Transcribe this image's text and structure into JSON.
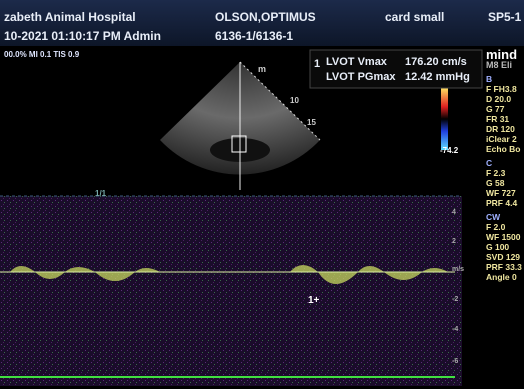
{
  "header": {
    "hospital": "zabeth Animal Hospital",
    "patient": "OLSON,OPTIMUS",
    "preset": "card small",
    "probe": "SP5-1",
    "datetime": "10-2021 01:10:17 PM Admin",
    "study_id": "6136-1/6136-1",
    "power": "00.0% MI 0.1 TIS 0.9"
  },
  "measurement": {
    "index": "1",
    "rows": [
      {
        "label": "LVOT Vmax",
        "value": "176.20 cm/s"
      },
      {
        "label": "LVOT PGmax",
        "value": "12.42 mmHg"
      }
    ]
  },
  "image": {
    "orientation_mark": "m",
    "depth_ticks": [
      "10",
      "15"
    ],
    "color_scale_min": "-74.2",
    "sweep_label": "1/1",
    "cursor_label": "1+"
  },
  "doppler_scale": [
    "4",
    "2",
    "m/s",
    "-2",
    "-4",
    "-6"
  ],
  "side_panel": {
    "brand": "mind",
    "model": "M8 Eli",
    "b_mode": {
      "title": "B",
      "params": [
        "F FH3.8",
        "D 20.0",
        "G 77",
        "FR 31",
        "DR 120",
        "iClear 2",
        "Echo Bo"
      ]
    },
    "color": {
      "title": "C",
      "params": [
        "F 2.3",
        "G 58",
        "WF 727",
        "PRF 4.4"
      ]
    },
    "cw": {
      "title": "CW",
      "params": [
        "F 2.0",
        "WF 1500",
        "G 100",
        "SVD 129",
        "PRF 33.3",
        "Angle 0"
      ]
    }
  }
}
